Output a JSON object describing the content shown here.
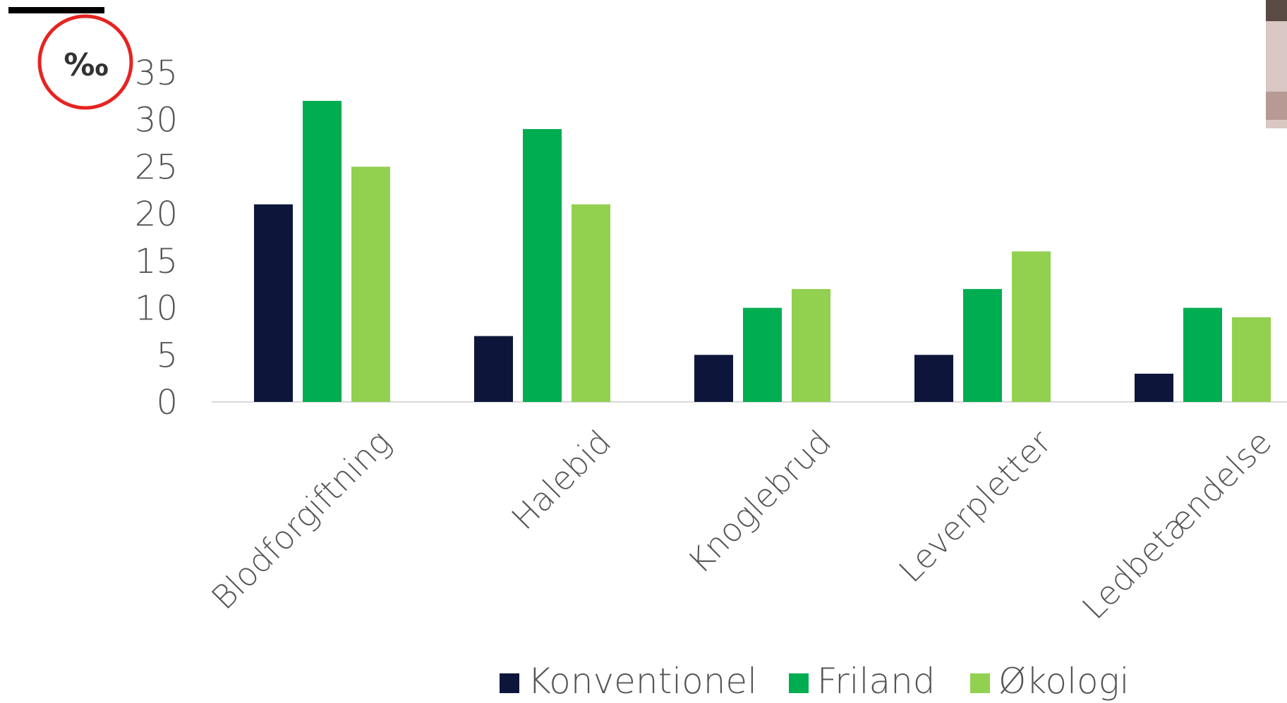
{
  "chart_data": {
    "type": "bar",
    "unit_label": "‰",
    "categories": [
      "Blodforgiftning",
      "Halebid",
      "Knoglebrud",
      "Leverpletter",
      "Ledbetændelse"
    ],
    "series": [
      {
        "name": "Konventionel",
        "color": "#0d163a",
        "values": [
          21,
          7,
          5,
          5,
          3
        ]
      },
      {
        "name": "Friland",
        "color": "#00ad50",
        "values": [
          32,
          29,
          10,
          12,
          10
        ]
      },
      {
        "name": "Økologi",
        "color": "#92d050",
        "values": [
          25,
          21,
          12,
          16,
          9
        ]
      }
    ],
    "yticks": [
      "0",
      "5",
      "10",
      "15",
      "20",
      "25",
      "30",
      "35"
    ],
    "ylim": [
      0,
      35
    ],
    "grid": false,
    "legend_position": "bottom",
    "annotation": {
      "type": "circle",
      "color": "#e52421",
      "target": "unit_label"
    }
  }
}
